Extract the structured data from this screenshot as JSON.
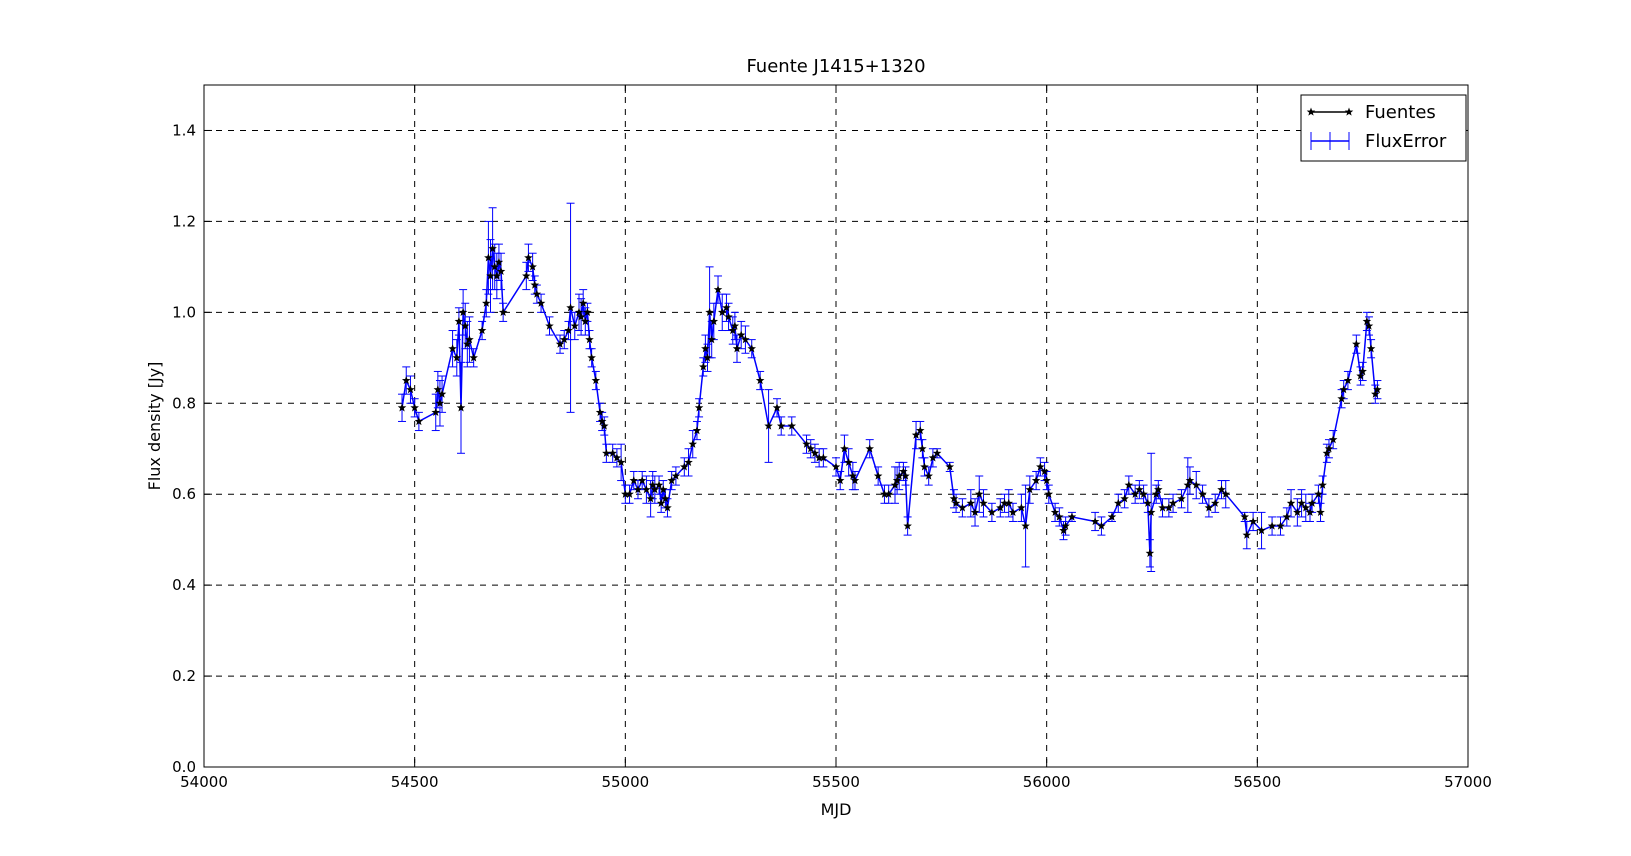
{
  "chart_data": {
    "type": "errorbar",
    "title": "Fuente J1415+1320",
    "xlabel": "MJD",
    "ylabel": "Flux density [Jy]",
    "xlim": [
      54000,
      57000
    ],
    "ylim": [
      0,
      1.5
    ],
    "xticks": [
      54000,
      54500,
      55000,
      55500,
      56000,
      56500,
      57000
    ],
    "yticks": [
      {
        "value": 0,
        "label": "0.0"
      },
      0.2,
      0.4,
      0.6,
      0.8,
      {
        "value": 1,
        "label": "1.0"
      },
      1.2,
      1.4
    ],
    "grid": true,
    "legend": "upper right",
    "x": [
      54470,
      54480,
      54490,
      54500,
      54510,
      54550,
      54555,
      54560,
      54565,
      54590,
      54600,
      54605,
      54610,
      54615,
      54620,
      54625,
      54630,
      54640,
      54660,
      54670,
      54675,
      54680,
      54685,
      54690,
      54695,
      54700,
      54705,
      54710,
      54765,
      54770,
      54780,
      54785,
      54790,
      54800,
      54820,
      54845,
      54855,
      54865,
      54870,
      54880,
      54890,
      54895,
      54900,
      54905,
      54910,
      54915,
      54920,
      54930,
      54940,
      54945,
      54950,
      54955,
      54970,
      54980,
      54990,
      55000,
      55010,
      55020,
      55030,
      55040,
      55050,
      55060,
      55065,
      55070,
      55080,
      55085,
      55090,
      55095,
      55100,
      55110,
      55120,
      55140,
      55150,
      55160,
      55170,
      55175,
      55185,
      55190,
      55195,
      55200,
      55205,
      55210,
      55220,
      55230,
      55240,
      55245,
      55255,
      55260,
      55265,
      55275,
      55285,
      55300,
      55320,
      55340,
      55360,
      55370,
      55395,
      55430,
      55440,
      55450,
      55460,
      55470,
      55500,
      55510,
      55520,
      55530,
      55540,
      55545,
      55580,
      55600,
      55615,
      55625,
      55640,
      55645,
      55650,
      55660,
      55665,
      55670,
      55690,
      55700,
      55705,
      55710,
      55720,
      55730,
      55740,
      55770,
      55780,
      55785,
      55800,
      55820,
      55830,
      55840,
      55850,
      55870,
      55890,
      55900,
      55910,
      55920,
      55940,
      55950,
      55960,
      55975,
      55985,
      55995,
      56000,
      56005,
      56020,
      56030,
      56040,
      56045,
      56060,
      56115,
      56130,
      56155,
      56170,
      56185,
      56195,
      56210,
      56220,
      56230,
      56240,
      56245,
      56248,
      56260,
      56265,
      56275,
      56290,
      56300,
      56320,
      56335,
      56340,
      56355,
      56370,
      56385,
      56400,
      56415,
      56425,
      56470,
      56475,
      56490,
      56510,
      56535,
      56555,
      56570,
      56580,
      56595,
      56605,
      56615,
      56625,
      56630,
      56645,
      56650,
      56655,
      56665,
      56670,
      56680,
      56700,
      56705,
      56715,
      56735,
      56745,
      56750,
      56760,
      56765,
      56770,
      56780,
      56785
    ],
    "series": [
      {
        "name": "Fuentes",
        "color": "#000000",
        "values": [
          0.79,
          0.85,
          0.83,
          0.79,
          0.76,
          0.78,
          0.83,
          0.8,
          0.82,
          0.92,
          0.9,
          0.98,
          0.79,
          1.0,
          0.97,
          0.93,
          0.94,
          0.9,
          0.96,
          1.02,
          1.12,
          1.08,
          1.14,
          1.1,
          1.08,
          1.11,
          1.09,
          1.0,
          1.08,
          1.12,
          1.1,
          1.06,
          1.04,
          1.02,
          0.97,
          0.93,
          0.94,
          0.96,
          1.01,
          0.97,
          1.0,
          0.99,
          1.02,
          0.98,
          1.0,
          0.94,
          0.9,
          0.85,
          0.78,
          0.76,
          0.75,
          0.69,
          0.69,
          0.68,
          0.67,
          0.6,
          0.6,
          0.63,
          0.61,
          0.63,
          0.61,
          0.59,
          0.62,
          0.61,
          0.62,
          0.58,
          0.61,
          0.59,
          0.57,
          0.63,
          0.64,
          0.66,
          0.67,
          0.71,
          0.74,
          0.79,
          0.88,
          0.92,
          0.9,
          1.0,
          0.94,
          0.98,
          1.05,
          1.0,
          1.01,
          0.99,
          0.96,
          0.97,
          0.92,
          0.95,
          0.94,
          0.92,
          0.85,
          0.75,
          0.79,
          0.75,
          0.75,
          0.71,
          0.7,
          0.69,
          0.68,
          0.68,
          0.66,
          0.63,
          0.7,
          0.67,
          0.64,
          0.63,
          0.7,
          0.64,
          0.6,
          0.6,
          0.62,
          0.63,
          0.64,
          0.65,
          0.64,
          0.53,
          0.73,
          0.74,
          0.7,
          0.66,
          0.64,
          0.68,
          0.69,
          0.66,
          0.59,
          0.58,
          0.57,
          0.58,
          0.56,
          0.6,
          0.58,
          0.56,
          0.57,
          0.58,
          0.58,
          0.56,
          0.57,
          0.53,
          0.61,
          0.63,
          0.66,
          0.65,
          0.63,
          0.6,
          0.56,
          0.55,
          0.52,
          0.53,
          0.55,
          0.54,
          0.53,
          0.55,
          0.58,
          0.59,
          0.62,
          0.6,
          0.61,
          0.6,
          0.58,
          0.47,
          0.56,
          0.6,
          0.61,
          0.57,
          0.57,
          0.58,
          0.59,
          0.62,
          0.63,
          0.62,
          0.6,
          0.57,
          0.58,
          0.61,
          0.6,
          0.55,
          0.51,
          0.54,
          0.52,
          0.53,
          0.53,
          0.55,
          0.58,
          0.56,
          0.58,
          0.57,
          0.56,
          0.58,
          0.6,
          0.56,
          0.62,
          0.69,
          0.7,
          0.72,
          0.81,
          0.83,
          0.85,
          0.93,
          0.86,
          0.87,
          0.98,
          0.97,
          0.92,
          0.82,
          0.83
        ]
      },
      {
        "name": "FluxError",
        "color": "#0000ff",
        "values": [
          0.03,
          0.03,
          0.03,
          0.02,
          0.02,
          0.04,
          0.04,
          0.05,
          0.04,
          0.04,
          0.04,
          0.03,
          0.1,
          0.05,
          0.05,
          0.05,
          0.05,
          0.02,
          0.02,
          0.03,
          0.08,
          0.08,
          0.09,
          0.05,
          0.05,
          0.04,
          0.04,
          0.02,
          0.03,
          0.03,
          0.03,
          0.02,
          0.02,
          0.02,
          0.02,
          0.02,
          0.02,
          0.02,
          0.23,
          0.03,
          0.04,
          0.04,
          0.03,
          0.03,
          0.02,
          0.02,
          0.02,
          0.02,
          0.02,
          0.02,
          0.02,
          0.02,
          0.02,
          0.02,
          0.04,
          0.02,
          0.02,
          0.02,
          0.02,
          0.02,
          0.03,
          0.04,
          0.03,
          0.03,
          0.02,
          0.02,
          0.02,
          0.02,
          0.02,
          0.02,
          0.02,
          0.02,
          0.03,
          0.03,
          0.02,
          0.02,
          0.02,
          0.03,
          0.03,
          0.1,
          0.04,
          0.04,
          0.03,
          0.04,
          0.03,
          0.03,
          0.03,
          0.03,
          0.03,
          0.03,
          0.03,
          0.02,
          0.02,
          0.08,
          0.02,
          0.02,
          0.02,
          0.02,
          0.02,
          0.02,
          0.02,
          0.02,
          0.02,
          0.02,
          0.03,
          0.03,
          0.03,
          0.02,
          0.02,
          0.02,
          0.02,
          0.02,
          0.04,
          0.03,
          0.03,
          0.02,
          0.02,
          0.02,
          0.03,
          0.02,
          0.02,
          0.02,
          0.02,
          0.02,
          0.01,
          0.01,
          0.02,
          0.02,
          0.02,
          0.03,
          0.03,
          0.04,
          0.03,
          0.02,
          0.02,
          0.02,
          0.03,
          0.02,
          0.03,
          0.09,
          0.03,
          0.02,
          0.02,
          0.02,
          0.02,
          0.02,
          0.02,
          0.02,
          0.02,
          0.02,
          0.01,
          0.02,
          0.02,
          0.01,
          0.02,
          0.02,
          0.02,
          0.02,
          0.02,
          0.02,
          0.02,
          0.03,
          0.13,
          0.02,
          0.02,
          0.02,
          0.02,
          0.02,
          0.02,
          0.06,
          0.03,
          0.03,
          0.02,
          0.02,
          0.02,
          0.02,
          0.03,
          0.01,
          0.03,
          0.02,
          0.04,
          0.02,
          0.02,
          0.02,
          0.03,
          0.03,
          0.03,
          0.03,
          0.02,
          0.02,
          0.02,
          0.02,
          0.02,
          0.02,
          0.02,
          0.02,
          0.02,
          0.02,
          0.02,
          0.02,
          0.02,
          0.02,
          0.02,
          0.02,
          0.02,
          0.02,
          0.02
        ]
      }
    ]
  }
}
